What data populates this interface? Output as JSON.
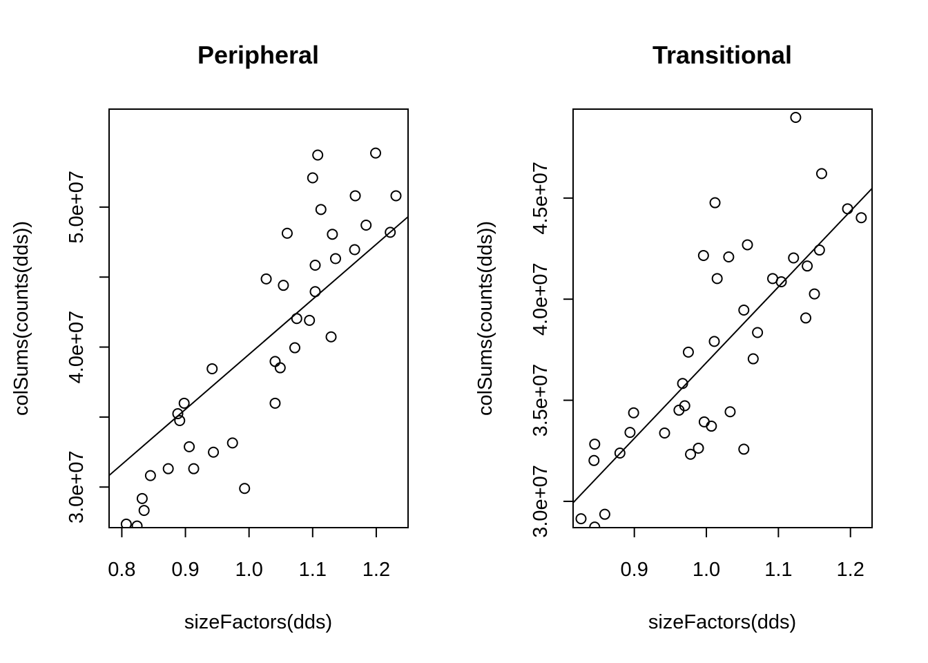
{
  "chart_data": [
    {
      "type": "scatter",
      "title": "Peripheral",
      "xlabel": "sizeFactors(dds)",
      "ylabel": "colSums(counts(dds))",
      "xlim": [
        0.78,
        1.25
      ],
      "ylim": [
        27100000,
        57000000
      ],
      "xticks": [
        0.8,
        0.9,
        1.0,
        1.1,
        1.2
      ],
      "xtick_labels": [
        "0.8",
        "0.9",
        "1.0",
        "1.1",
        "1.2"
      ],
      "yticks": [
        30000000,
        35000000,
        40000000,
        45000000,
        50000000
      ],
      "ytick_labels": [
        "3.0e+07",
        "",
        "4.0e+07",
        "",
        "5.0e+07"
      ],
      "grid": false,
      "fit_line": [
        [
          0.78,
          30830000
        ],
        [
          1.25,
          49310000
        ]
      ],
      "points": [
        [
          0.799,
          26180000
        ],
        [
          0.807,
          27350000
        ],
        [
          0.824,
          27220000
        ],
        [
          0.832,
          29180000
        ],
        [
          0.835,
          28330000
        ],
        [
          0.845,
          30820000
        ],
        [
          0.873,
          31310000
        ],
        [
          0.888,
          35240000
        ],
        [
          0.891,
          34750000
        ],
        [
          0.898,
          35990000
        ],
        [
          0.906,
          32880000
        ],
        [
          0.913,
          31310000
        ],
        [
          0.942,
          38450000
        ],
        [
          0.944,
          32490000
        ],
        [
          0.974,
          33150000
        ],
        [
          0.993,
          29900000
        ],
        [
          1.027,
          44870000
        ],
        [
          1.041,
          38970000
        ],
        [
          1.041,
          35990000
        ],
        [
          1.049,
          38520000
        ],
        [
          1.054,
          44410000
        ],
        [
          1.06,
          48130000
        ],
        [
          1.072,
          39950000
        ],
        [
          1.075,
          42040000
        ],
        [
          1.095,
          41910000
        ],
        [
          1.1,
          52090000
        ],
        [
          1.104,
          45850000
        ],
        [
          1.104,
          43960000
        ],
        [
          1.108,
          53720000
        ],
        [
          1.113,
          49830000
        ],
        [
          1.129,
          40730000
        ],
        [
          1.131,
          48060000
        ],
        [
          1.136,
          46320000
        ],
        [
          1.166,
          46960000
        ],
        [
          1.167,
          50810000
        ],
        [
          1.184,
          48710000
        ],
        [
          1.199,
          53860000
        ],
        [
          1.222,
          48200000
        ],
        [
          1.231,
          50810000
        ]
      ]
    },
    {
      "type": "scatter",
      "title": "Transitional",
      "xlabel": "sizeFactors(dds)",
      "ylabel": "colSums(counts(dds))",
      "xlim": [
        0.815,
        1.23
      ],
      "ylim": [
        28700000,
        49400000
      ],
      "xticks": [
        0.9,
        1.0,
        1.1,
        1.2
      ],
      "xtick_labels": [
        "0.9",
        "1.0",
        "1.1",
        "1.2"
      ],
      "yticks": [
        30000000,
        35000000,
        40000000,
        45000000
      ],
      "ytick_labels": [
        "3.0e+07",
        "3.5e+07",
        "4.0e+07",
        "4.5e+07"
      ],
      "grid": false,
      "fit_line": [
        [
          0.815,
          29930000
        ],
        [
          1.23,
          45480000
        ]
      ],
      "points": [
        [
          0.826,
          29140000
        ],
        [
          0.845,
          28730000
        ],
        [
          0.844,
          32020000
        ],
        [
          0.845,
          32830000
        ],
        [
          0.859,
          29360000
        ],
        [
          0.88,
          32390000
        ],
        [
          0.894,
          33410000
        ],
        [
          0.899,
          34380000
        ],
        [
          0.942,
          33380000
        ],
        [
          0.962,
          34510000
        ],
        [
          0.967,
          35830000
        ],
        [
          0.97,
          34730000
        ],
        [
          0.975,
          37380000
        ],
        [
          0.978,
          32330000
        ],
        [
          0.989,
          32630000
        ],
        [
          0.996,
          42160000
        ],
        [
          0.997,
          33930000
        ],
        [
          1.007,
          33720000
        ],
        [
          1.011,
          37910000
        ],
        [
          1.012,
          44770000
        ],
        [
          1.015,
          41020000
        ],
        [
          1.031,
          42090000
        ],
        [
          1.033,
          34430000
        ],
        [
          1.052,
          39460000
        ],
        [
          1.052,
          32580000
        ],
        [
          1.057,
          42690000
        ],
        [
          1.065,
          37050000
        ],
        [
          1.071,
          38350000
        ],
        [
          1.092,
          41020000
        ],
        [
          1.104,
          40860000
        ],
        [
          1.121,
          42040000
        ],
        [
          1.124,
          48990000
        ],
        [
          1.138,
          39070000
        ],
        [
          1.14,
          41640000
        ],
        [
          1.15,
          40260000
        ],
        [
          1.157,
          42430000
        ],
        [
          1.16,
          46210000
        ],
        [
          1.196,
          44470000
        ],
        [
          1.215,
          44030000
        ]
      ]
    }
  ]
}
